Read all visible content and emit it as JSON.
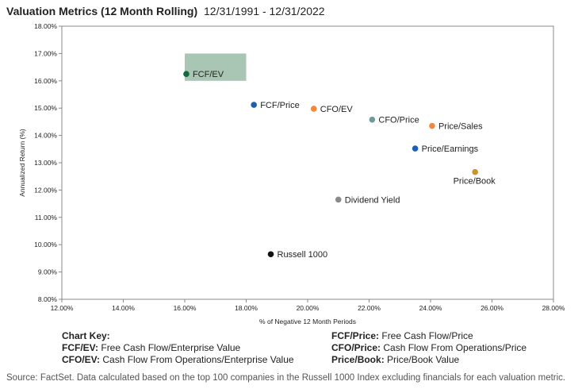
{
  "header": {
    "title": "Valuation Metrics (12 Month Rolling)",
    "date_range": "12/31/1991 - 12/31/2022"
  },
  "chart_data": {
    "type": "scatter",
    "xlabel": "% of Negative 12 Month Periods",
    "ylabel": "Annualized Return (%)",
    "xlim": [
      12,
      28
    ],
    "ylim": [
      8,
      18
    ],
    "x_ticks": [
      12,
      14,
      16,
      18,
      20,
      22,
      24,
      26,
      28
    ],
    "y_ticks": [
      8,
      9,
      10,
      11,
      12,
      13,
      14,
      15,
      16,
      17,
      18
    ],
    "x_tick_labels": [
      "12.00%",
      "14.00%",
      "16.00%",
      "18.00%",
      "20.00%",
      "22.00%",
      "24.00%",
      "26.00%",
      "28.00%"
    ],
    "y_tick_labels": [
      "8.00%",
      "9.00%",
      "10.00%",
      "11.00%",
      "12.00%",
      "13.00%",
      "14.00%",
      "15.00%",
      "16.00%",
      "17.00%",
      "18.00%"
    ],
    "grid": false,
    "highlight_box": {
      "x": [
        16,
        18
      ],
      "y": [
        16,
        17
      ],
      "color": "#a9c6b4"
    },
    "points": [
      {
        "label": "FCF/EV",
        "x": 16.05,
        "y": 16.25,
        "color": "#0e6b3a",
        "label_pos": "right"
      },
      {
        "label": "FCF/Price",
        "x": 18.25,
        "y": 15.12,
        "color": "#1f5fb0",
        "label_pos": "right"
      },
      {
        "label": "CFO/EV",
        "x": 20.2,
        "y": 14.98,
        "color": "#f5873a",
        "label_pos": "right"
      },
      {
        "label": "CFO/Price",
        "x": 22.1,
        "y": 14.58,
        "color": "#6f9a9a",
        "label_pos": "right"
      },
      {
        "label": "Price/Sales",
        "x": 24.05,
        "y": 14.35,
        "color": "#f5873a",
        "label_pos": "right"
      },
      {
        "label": "Price/Earnings",
        "x": 23.5,
        "y": 13.52,
        "color": "#1f5fb0",
        "label_pos": "right"
      },
      {
        "label": "Price/Book",
        "x": 25.45,
        "y": 12.66,
        "color": "#c9962e",
        "label_pos": "below"
      },
      {
        "label": "Dividend Yield",
        "x": 21.0,
        "y": 11.65,
        "color": "#8a8a8a",
        "label_pos": "right"
      },
      {
        "label": "Russell 1000",
        "x": 18.8,
        "y": 9.65,
        "color": "#111111",
        "label_pos": "right"
      }
    ]
  },
  "chart_key": {
    "heading": "Chart Key:",
    "left": [
      {
        "abbr": "FCF/EV:",
        "desc": "Free Cash Flow/Enterprise Value"
      },
      {
        "abbr": "CFO/EV:",
        "desc": "Cash Flow From Operations/Enterprise Value"
      }
    ],
    "right": [
      {
        "abbr": "FCF/Price:",
        "desc": "Free Cash Flow/Price"
      },
      {
        "abbr": "CFO/Price:",
        "desc": "Cash Flow From Operations/Price"
      },
      {
        "abbr": "Price/Book:",
        "desc": "Price/Book Value"
      }
    ]
  },
  "source": "Source: FactSet. Data calculated based on the top 100 companies in the Russell 1000 Index excluding financials for each valuation metric."
}
